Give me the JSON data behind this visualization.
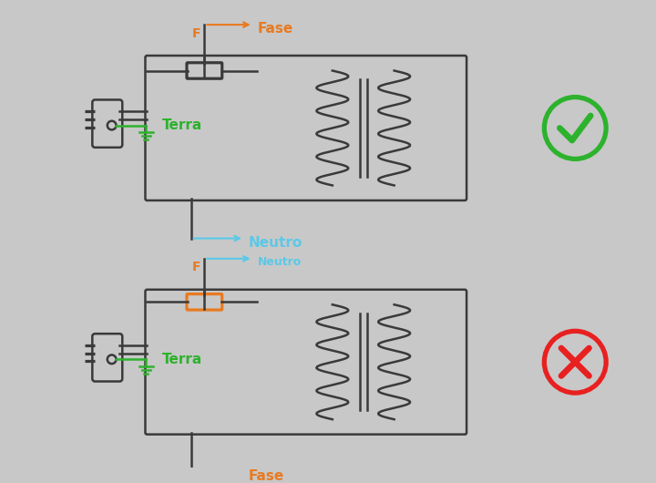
{
  "bg_color": "#c8c8c8",
  "line_color": "#3a3a3a",
  "orange_color": "#e87a20",
  "green_color": "#2db22d",
  "blue_color": "#5bc8e8",
  "red_color": "#e82020",
  "fuse_color_correct": "#c8c8c8",
  "fuse_color_wrong": "#e87a20",
  "label_fase": "Fase",
  "label_neutro": "Neutro",
  "label_terra": "Terra",
  "label_f": "F",
  "check_color": "#2db22d",
  "cross_color": "#e82020"
}
